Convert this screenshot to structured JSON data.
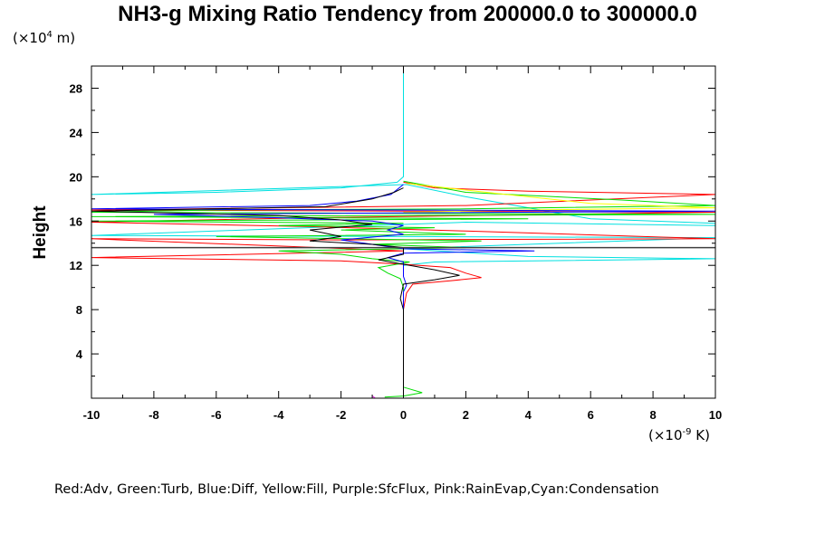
{
  "chart_data": {
    "type": "line",
    "title": "NH3-g Mixing Ratio Tendency from 200000.0 to 300000.0",
    "ylabel": "Height",
    "y_units_label": {
      "prefix": "(×10",
      "exp": "4",
      "suffix": " m)"
    },
    "x_units_label": {
      "prefix": "(×10",
      "exp": "-9",
      "suffix": " K)"
    },
    "xlim": [
      -10,
      10
    ],
    "ylim": [
      0,
      30
    ],
    "x_ticks": [
      "-10",
      "-8",
      "-6",
      "-4",
      "-2",
      "0",
      "2",
      "4",
      "6",
      "8",
      "10"
    ],
    "y_ticks": [
      "4",
      "8",
      "12",
      "16",
      "20",
      "24",
      "28"
    ],
    "legend_text": "Red:Adv, Green:Turb, Blue:Diff, Yellow:Fill, Purple:SfcFlux, Pink:RainEvap,Cyan:Condensation",
    "grid": false,
    "hline": {
      "y": 13.6,
      "color": "#404040"
    },
    "series": [
      {
        "color": "#00e0e0",
        "points": [
          [
            0,
            30
          ],
          [
            0,
            20
          ],
          [
            -0.2,
            19.5
          ],
          [
            -2,
            19
          ],
          [
            -6,
            18.6
          ],
          [
            -10,
            18.4
          ],
          [
            -10,
            18.4
          ],
          [
            0.1,
            19.3
          ],
          [
            2,
            18.2
          ],
          [
            6,
            16.2
          ],
          [
            10,
            15.8
          ],
          [
            10,
            15.6
          ],
          [
            2,
            15.9
          ],
          [
            -4,
            15.3
          ],
          [
            -10,
            14.7
          ],
          [
            10,
            14.5
          ],
          [
            0,
            13.5
          ],
          [
            4,
            12.8
          ],
          [
            10,
            12.6
          ],
          [
            1,
            12.3
          ],
          [
            0,
            12
          ]
        ]
      },
      {
        "color": "#ff0000",
        "points": [
          [
            0,
            19.5
          ],
          [
            1,
            19.0
          ],
          [
            4,
            18.7
          ],
          [
            10,
            18.4
          ],
          [
            2,
            17.4
          ],
          [
            -4,
            17.2
          ],
          [
            -10,
            17.0
          ],
          [
            10,
            16.8
          ],
          [
            -3,
            16.3
          ],
          [
            -10,
            15.9
          ],
          [
            -3,
            15.5
          ],
          [
            2,
            15.1
          ],
          [
            10,
            14.4
          ],
          [
            -2,
            14.3
          ],
          [
            -10,
            14.4
          ],
          [
            0,
            13.3
          ],
          [
            -10,
            12.7
          ],
          [
            -2,
            12.4
          ],
          [
            0,
            12.1
          ],
          [
            1.5,
            11.8
          ],
          [
            2,
            11.3
          ],
          [
            2.5,
            10.9
          ],
          [
            1.5,
            10.6
          ],
          [
            0.3,
            10.3
          ],
          [
            0.1,
            9.5
          ],
          [
            0,
            8
          ],
          [
            0,
            0
          ]
        ]
      },
      {
        "color": "#00dd00",
        "points": [
          [
            0,
            19.6
          ],
          [
            2,
            18.6
          ],
          [
            7,
            17.9
          ],
          [
            10,
            17.4
          ],
          [
            2,
            17.1
          ],
          [
            -6,
            17.0
          ],
          [
            -10,
            16.8
          ],
          [
            10,
            16.6
          ],
          [
            -10,
            16.4
          ],
          [
            4,
            16.2
          ],
          [
            -10,
            16.0
          ],
          [
            0,
            15.8
          ],
          [
            -4,
            15.6
          ],
          [
            1,
            15.4
          ],
          [
            -2,
            15.2
          ],
          [
            2,
            14.8
          ],
          [
            -6,
            14.6
          ],
          [
            2.5,
            14.2
          ],
          [
            -1,
            13.9
          ],
          [
            2,
            13.6
          ],
          [
            -4,
            13.3
          ],
          [
            -2,
            13.0
          ],
          [
            -1,
            12.6
          ],
          [
            0.2,
            12.3
          ],
          [
            -0.8,
            11.8
          ],
          [
            -0.5,
            11.3
          ],
          [
            -0.1,
            10.8
          ],
          [
            0,
            10
          ],
          [
            0,
            8
          ],
          [
            0,
            1
          ],
          [
            0.6,
            0.5
          ],
          [
            0,
            0.2
          ],
          [
            -0.6,
            0.1
          ]
        ]
      },
      {
        "color": "#ffff00",
        "points": [
          [
            0.1,
            19.4
          ],
          [
            3,
            18.5
          ],
          [
            6,
            17.6
          ],
          [
            10,
            17.2
          ],
          [
            4,
            17.0
          ],
          [
            0,
            16.8
          ]
        ]
      },
      {
        "color": "#0000ff",
        "points": [
          [
            0,
            19.3
          ],
          [
            -0.4,
            18.4
          ],
          [
            -1.5,
            17.8
          ],
          [
            -3,
            17.4
          ],
          [
            -10,
            17.1
          ],
          [
            10,
            16.9
          ],
          [
            -8,
            16.6
          ],
          [
            -4,
            16.3
          ],
          [
            -1,
            16.0
          ],
          [
            0,
            15.6
          ],
          [
            -0.5,
            15.2
          ],
          [
            0,
            14.8
          ],
          [
            -2,
            14.3
          ],
          [
            -1,
            13.9
          ],
          [
            0,
            13.5
          ],
          [
            4.2,
            13.3
          ],
          [
            0,
            13.1
          ],
          [
            -0.5,
            12.7
          ],
          [
            0,
            12.3
          ],
          [
            0,
            11
          ],
          [
            0.1,
            10.2
          ],
          [
            0,
            9.6
          ],
          [
            0,
            0.3
          ]
        ]
      },
      {
        "color": "#000000",
        "points": [
          [
            0,
            19.0
          ],
          [
            -0.3,
            18.6
          ],
          [
            -1,
            18.0
          ],
          [
            -2.5,
            17.3
          ],
          [
            -10,
            16.9
          ],
          [
            -4,
            16.5
          ],
          [
            -2,
            16.1
          ],
          [
            -1,
            15.7
          ],
          [
            -3,
            15.2
          ],
          [
            -2,
            14.6
          ],
          [
            -3,
            14.2
          ],
          [
            -1,
            13.9
          ],
          [
            0,
            13.6
          ],
          [
            0,
            13.0
          ],
          [
            -0.8,
            12.5
          ],
          [
            0,
            12.1
          ],
          [
            1,
            11.6
          ],
          [
            1.8,
            11.1
          ],
          [
            1,
            10.7
          ],
          [
            0,
            10.3
          ],
          [
            -0.1,
            9.0
          ],
          [
            0,
            8.0
          ],
          [
            0,
            0
          ]
        ]
      },
      {
        "color": "#ff00ff",
        "points": [
          [
            -1,
            0.2
          ],
          [
            -0.9,
            0.0
          ]
        ]
      }
    ]
  }
}
